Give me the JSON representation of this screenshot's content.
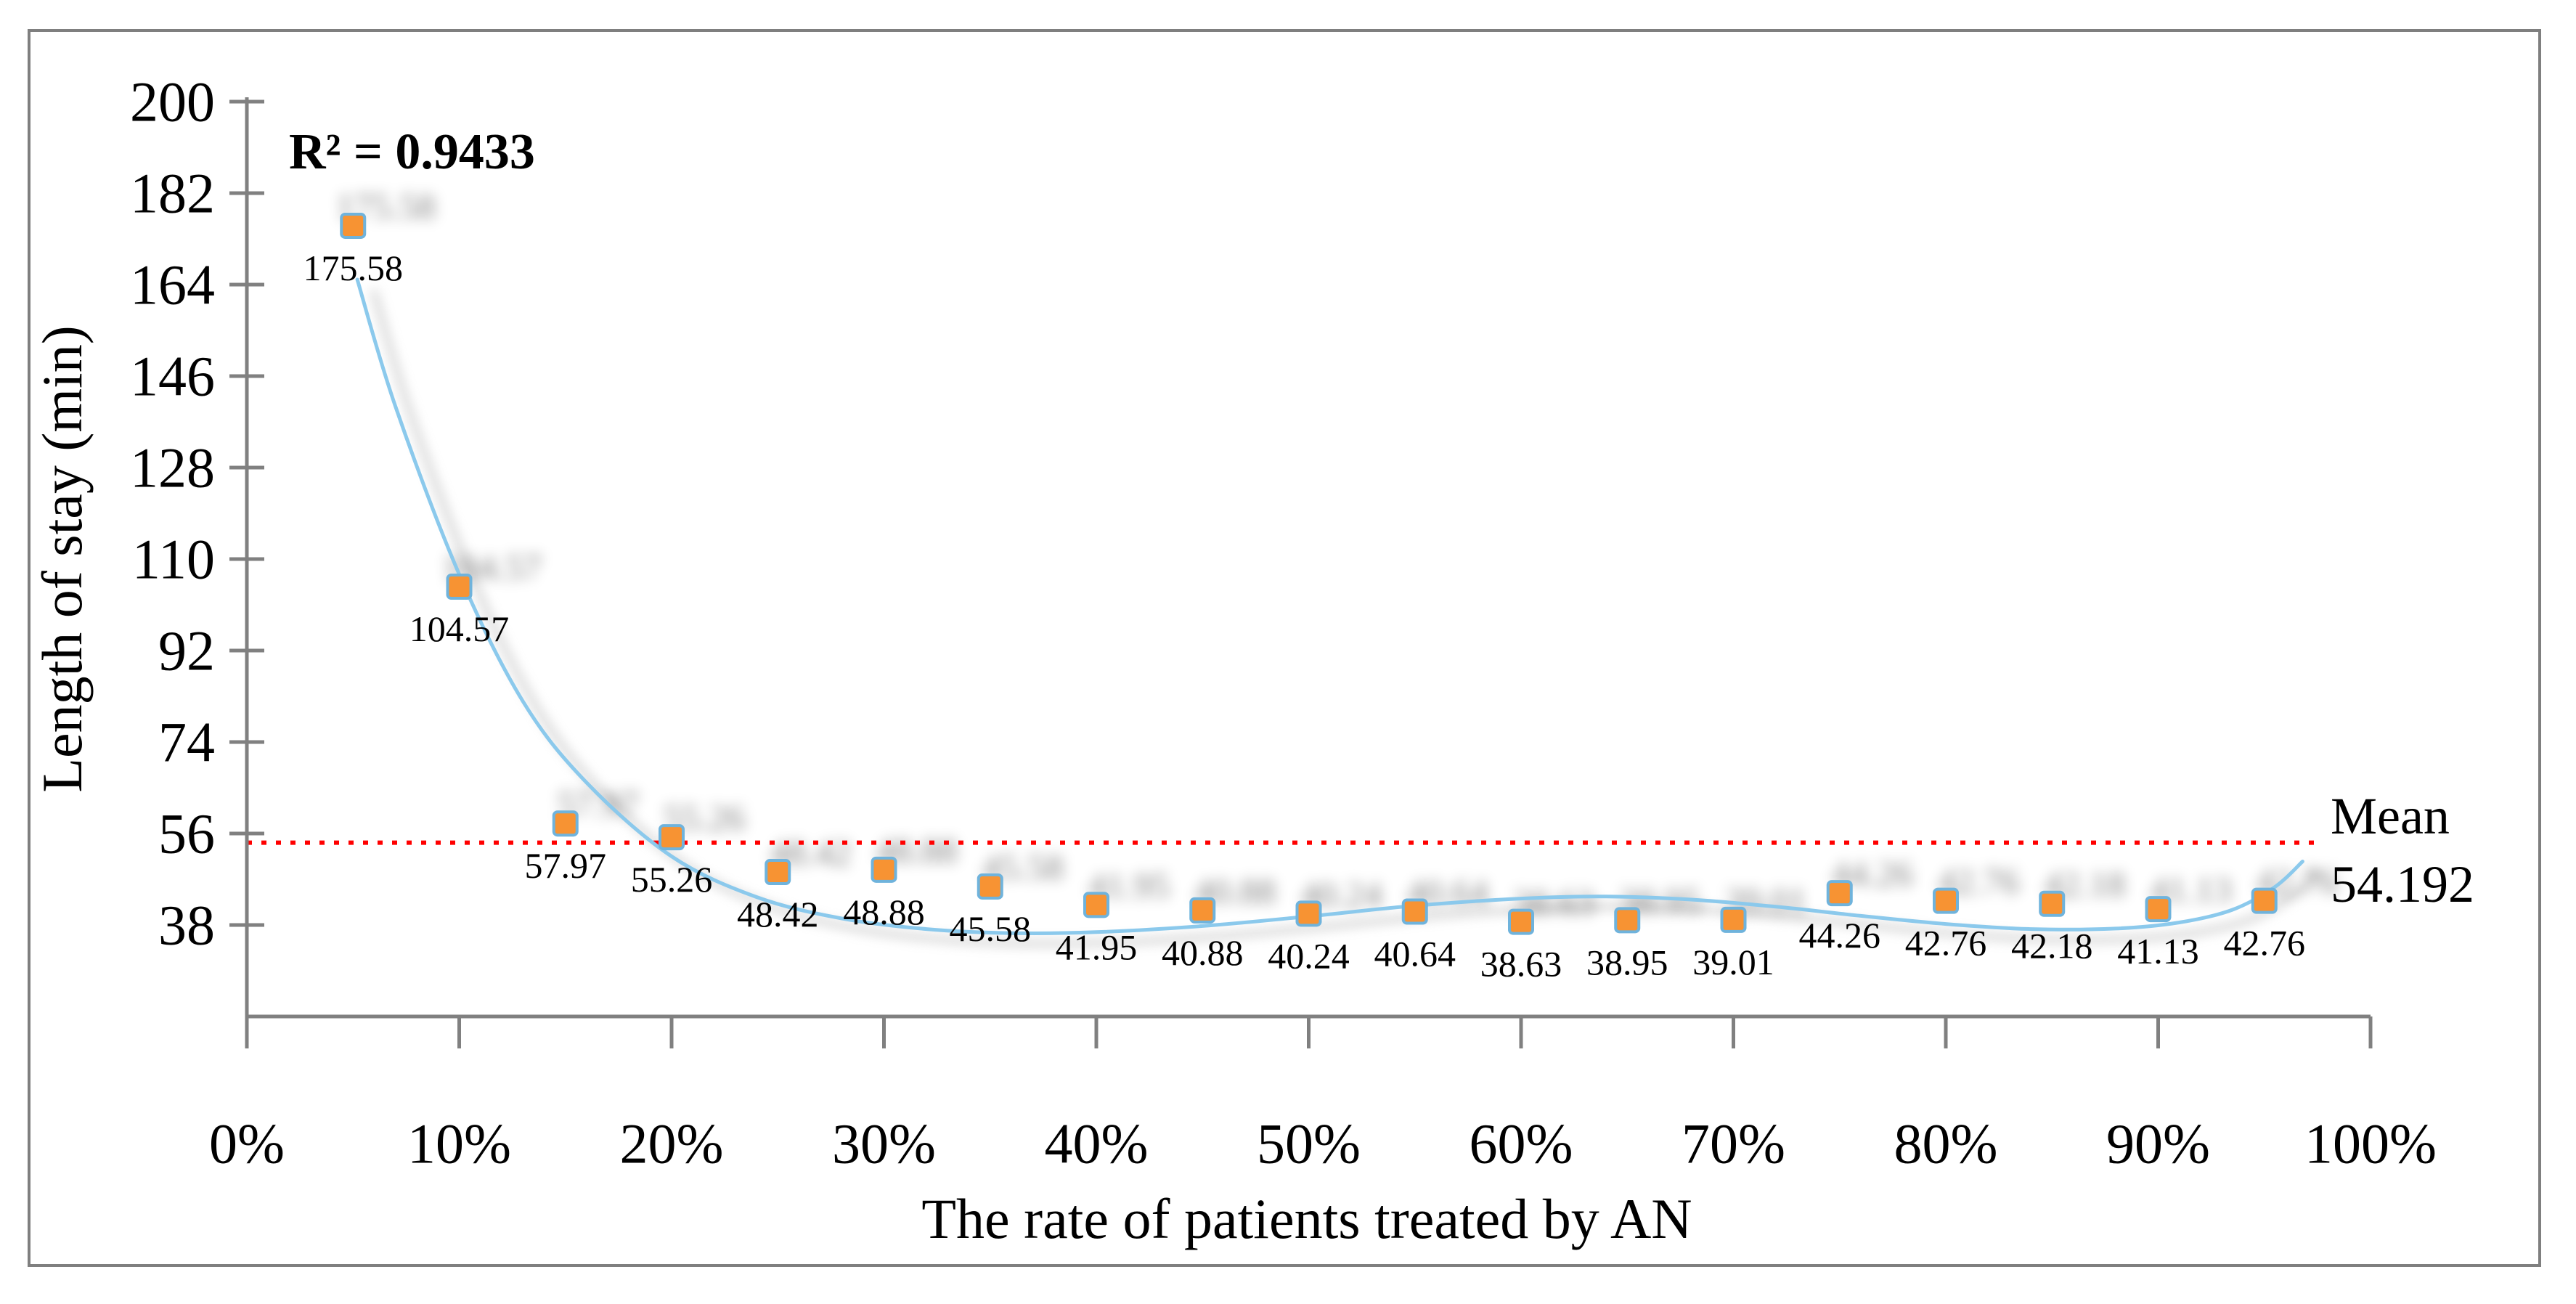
{
  "chart_data": {
    "type": "scatter",
    "title": "",
    "xlabel": "The rate of patients treated by AN",
    "ylabel": "Length of stay (min)",
    "xlim_percent": [
      0,
      100
    ],
    "ylim": [
      20,
      200
    ],
    "grid": false,
    "legend_position": "none",
    "x_tick_labels": [
      "0%",
      "10%",
      "20%",
      "30%",
      "40%",
      "50%",
      "60%",
      "70%",
      "80%",
      "90%",
      "100%"
    ],
    "x_tick_percents": [
      0,
      10,
      20,
      30,
      40,
      50,
      60,
      70,
      80,
      90,
      100
    ],
    "y_tick_labels": [
      "200",
      "182",
      "164",
      "146",
      "128",
      "110",
      "92",
      "74",
      "56",
      "38"
    ],
    "y_tick_values": [
      200,
      182,
      164,
      146,
      128,
      110,
      92,
      74,
      56,
      38
    ],
    "points": [
      {
        "x_percent": 5,
        "value": 175.58,
        "label": "175.58"
      },
      {
        "x_percent": 10,
        "value": 104.57,
        "label": "104.57"
      },
      {
        "x_percent": 15,
        "value": 57.97,
        "label": "57.97"
      },
      {
        "x_percent": 20,
        "value": 55.26,
        "label": "55.26"
      },
      {
        "x_percent": 25,
        "value": 48.42,
        "label": "48.42"
      },
      {
        "x_percent": 30,
        "value": 48.88,
        "label": "48.88"
      },
      {
        "x_percent": 35,
        "value": 45.58,
        "label": "45.58"
      },
      {
        "x_percent": 40,
        "value": 41.95,
        "label": "41.95"
      },
      {
        "x_percent": 45,
        "value": 40.88,
        "label": "40.88"
      },
      {
        "x_percent": 50,
        "value": 40.24,
        "label": "40.24"
      },
      {
        "x_percent": 55,
        "value": 40.64,
        "label": "40.64"
      },
      {
        "x_percent": 60,
        "value": 38.63,
        "label": "38.63"
      },
      {
        "x_percent": 65,
        "value": 38.95,
        "label": "38.95"
      },
      {
        "x_percent": 70,
        "value": 39.01,
        "label": "39.01"
      },
      {
        "x_percent": 75,
        "value": 44.26,
        "label": "44.26"
      },
      {
        "x_percent": 80,
        "value": 42.76,
        "label": "42.76"
      },
      {
        "x_percent": 85,
        "value": 42.18,
        "label": "42.18"
      },
      {
        "x_percent": 90,
        "value": 41.13,
        "label": "41.13"
      },
      {
        "x_percent": 95,
        "value": 42.76,
        "label": "42.76"
      }
    ],
    "annotations": {
      "r2_text": "R² = 0.9433",
      "mean_label": "Mean",
      "mean_value": 54.192,
      "mean_value_text": "54.192"
    },
    "trendline": {
      "type": "polynomial",
      "anchors_percent_value": [
        [
          5.2,
          165
        ],
        [
          7,
          140
        ],
        [
          10,
          107
        ],
        [
          13,
          82
        ],
        [
          16,
          66
        ],
        [
          20,
          51.5
        ],
        [
          24,
          43.5
        ],
        [
          28,
          39.3
        ],
        [
          32,
          37.2
        ],
        [
          36,
          36.4
        ],
        [
          40,
          36.6
        ],
        [
          45,
          37.8
        ],
        [
          50,
          39.7
        ],
        [
          55,
          41.8
        ],
        [
          60,
          43.2
        ],
        [
          64,
          43.6
        ],
        [
          68,
          43.0
        ],
        [
          72,
          41.6
        ],
        [
          76,
          39.8
        ],
        [
          80,
          38.2
        ],
        [
          84,
          37.2
        ],
        [
          88,
          37.3
        ],
        [
          91,
          38.5
        ],
        [
          93.5,
          41
        ],
        [
          95.5,
          45.5
        ],
        [
          96.8,
          50.5
        ]
      ]
    },
    "colors": {
      "marker_fill": "#F79333",
      "marker_stroke": "#6FB3DC",
      "trend_line": "#8BC9EC",
      "mean_line": "#FF0000",
      "r2_text": "#FF0000",
      "axis": "#808080",
      "border": "#7F7F7F",
      "shadow": "#8F8F8F",
      "text": "#000000"
    }
  }
}
